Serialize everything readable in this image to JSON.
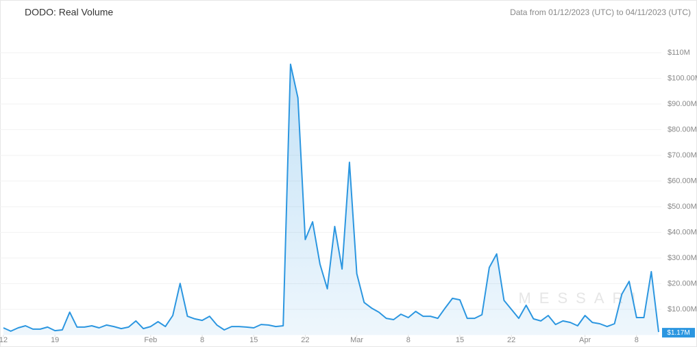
{
  "chart_data": {
    "type": "area",
    "title": "DODO: Real Volume",
    "subtitle": "Data from 01/12/2023 (UTC) to 04/11/2023 (UTC)",
    "watermark": "MESSARI",
    "color": "#2b96e0",
    "grid": true,
    "x": [
      "2023-01-12",
      "2023-01-13",
      "2023-01-14",
      "2023-01-15",
      "2023-01-16",
      "2023-01-17",
      "2023-01-18",
      "2023-01-19",
      "2023-01-20",
      "2023-01-21",
      "2023-01-22",
      "2023-01-23",
      "2023-01-24",
      "2023-01-25",
      "2023-01-26",
      "2023-01-27",
      "2023-01-28",
      "2023-01-29",
      "2023-01-30",
      "2023-01-31",
      "2023-02-01",
      "2023-02-02",
      "2023-02-03",
      "2023-02-04",
      "2023-02-05",
      "2023-02-06",
      "2023-02-07",
      "2023-02-08",
      "2023-02-09",
      "2023-02-10",
      "2023-02-11",
      "2023-02-12",
      "2023-02-13",
      "2023-02-14",
      "2023-02-15",
      "2023-02-16",
      "2023-02-17",
      "2023-02-18",
      "2023-02-19",
      "2023-02-20",
      "2023-02-21",
      "2023-02-22",
      "2023-02-23",
      "2023-02-24",
      "2023-02-25",
      "2023-02-26",
      "2023-02-27",
      "2023-02-28",
      "2023-03-01",
      "2023-03-02",
      "2023-03-03",
      "2023-03-04",
      "2023-03-05",
      "2023-03-06",
      "2023-03-07",
      "2023-03-08",
      "2023-03-09",
      "2023-03-10",
      "2023-03-11",
      "2023-03-12",
      "2023-03-13",
      "2023-03-14",
      "2023-03-15",
      "2023-03-16",
      "2023-03-17",
      "2023-03-18",
      "2023-03-19",
      "2023-03-20",
      "2023-03-21",
      "2023-03-22",
      "2023-03-23",
      "2023-03-24",
      "2023-03-25",
      "2023-03-26",
      "2023-03-27",
      "2023-03-28",
      "2023-03-29",
      "2023-03-30",
      "2023-03-31",
      "2023-04-01",
      "2023-04-02",
      "2023-04-03",
      "2023-04-04",
      "2023-04-05",
      "2023-04-06",
      "2023-04-07",
      "2023-04-08",
      "2023-04-09",
      "2023-04-10",
      "2023-04-11"
    ],
    "values": [
      2.8,
      1.5,
      2.8,
      3.6,
      2.3,
      2.3,
      3.1,
      1.7,
      2.0,
      8.9,
      3.1,
      3.1,
      3.6,
      2.8,
      3.9,
      3.3,
      2.5,
      3.1,
      5.5,
      2.5,
      3.3,
      5.2,
      3.3,
      7.6,
      20.1,
      7.3,
      6.3,
      5.7,
      7.3,
      3.9,
      2.0,
      3.3,
      3.3,
      3.1,
      2.8,
      4.1,
      3.9,
      3.3,
      3.6,
      105.5,
      92.4,
      37.2,
      44.1,
      27.6,
      18.0,
      42.3,
      25.7,
      67.3,
      23.9,
      12.7,
      10.5,
      8.9,
      6.5,
      6.0,
      8.1,
      6.8,
      9.2,
      7.3,
      7.3,
      6.5,
      10.5,
      14.3,
      13.7,
      6.5,
      6.5,
      7.9,
      26.3,
      31.6,
      13.5,
      10.0,
      6.5,
      11.6,
      6.3,
      5.5,
      7.6,
      4.1,
      5.5,
      4.9,
      3.6,
      7.6,
      4.9,
      4.4,
      3.3,
      4.4,
      15.9,
      20.9,
      6.8,
      6.8,
      24.7,
      1.17
    ],
    "current_value_label": {
      "value": 1.17,
      "label": "$1.17M"
    },
    "xlim": [
      "2023-01-12",
      "2023-04-11"
    ],
    "xticks": [
      {
        "value": "2023-01-12",
        "label": "12"
      },
      {
        "value": "2023-01-19",
        "label": "19"
      },
      {
        "value": "2023-02-01",
        "label": "Feb"
      },
      {
        "value": "2023-02-08",
        "label": "8"
      },
      {
        "value": "2023-02-15",
        "label": "15"
      },
      {
        "value": "2023-02-22",
        "label": "22"
      },
      {
        "value": "2023-03-01",
        "label": "Mar"
      },
      {
        "value": "2023-03-08",
        "label": "8"
      },
      {
        "value": "2023-03-15",
        "label": "15"
      },
      {
        "value": "2023-03-22",
        "label": "22"
      },
      {
        "value": "2023-04-01",
        "label": "Apr"
      },
      {
        "value": "2023-04-08",
        "label": "8"
      }
    ],
    "ylim": [
      0,
      110
    ],
    "yticks": [
      {
        "value": 10,
        "label": "$10.00M"
      },
      {
        "value": 20,
        "label": "$20.00M"
      },
      {
        "value": 30,
        "label": "$30.00M"
      },
      {
        "value": 40,
        "label": "$40.00M"
      },
      {
        "value": 50,
        "label": "$50.00M"
      },
      {
        "value": 60,
        "label": "$60.00M"
      },
      {
        "value": 70,
        "label": "$70.00M"
      },
      {
        "value": 80,
        "label": "$80.00M"
      },
      {
        "value": 90,
        "label": "$90.00M"
      },
      {
        "value": 100,
        "label": "$100.00M"
      },
      {
        "value": 110,
        "label": "$110M"
      }
    ]
  }
}
